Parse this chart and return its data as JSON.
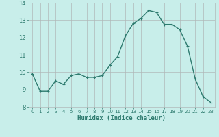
{
  "x": [
    0,
    1,
    2,
    3,
    4,
    5,
    6,
    7,
    8,
    9,
    10,
    11,
    12,
    13,
    14,
    15,
    16,
    17,
    18,
    19,
    20,
    21,
    22,
    23
  ],
  "y": [
    9.9,
    8.9,
    8.9,
    9.5,
    9.3,
    9.8,
    9.9,
    9.7,
    9.7,
    9.8,
    10.4,
    10.9,
    12.1,
    12.8,
    13.1,
    13.55,
    13.45,
    12.75,
    12.75,
    12.45,
    11.5,
    9.6,
    8.6,
    8.25
  ],
  "xlabel": "Humidex (Indice chaleur)",
  "ylim": [
    8,
    14
  ],
  "xlim_min": -0.5,
  "xlim_max": 23.5,
  "yticks": [
    8,
    9,
    10,
    11,
    12,
    13,
    14
  ],
  "xticks": [
    0,
    1,
    2,
    3,
    4,
    5,
    6,
    7,
    8,
    9,
    10,
    11,
    12,
    13,
    14,
    15,
    16,
    17,
    18,
    19,
    20,
    21,
    22,
    23
  ],
  "line_color": "#2d7a6e",
  "marker": "+",
  "bg_color": "#c8eeea",
  "grid_color": "#b0b8b8",
  "axis_color": "#2d7a6e",
  "tick_color": "#2d7a6e",
  "label_color": "#2d7a6e",
  "marker_size": 3,
  "line_width": 1.0
}
